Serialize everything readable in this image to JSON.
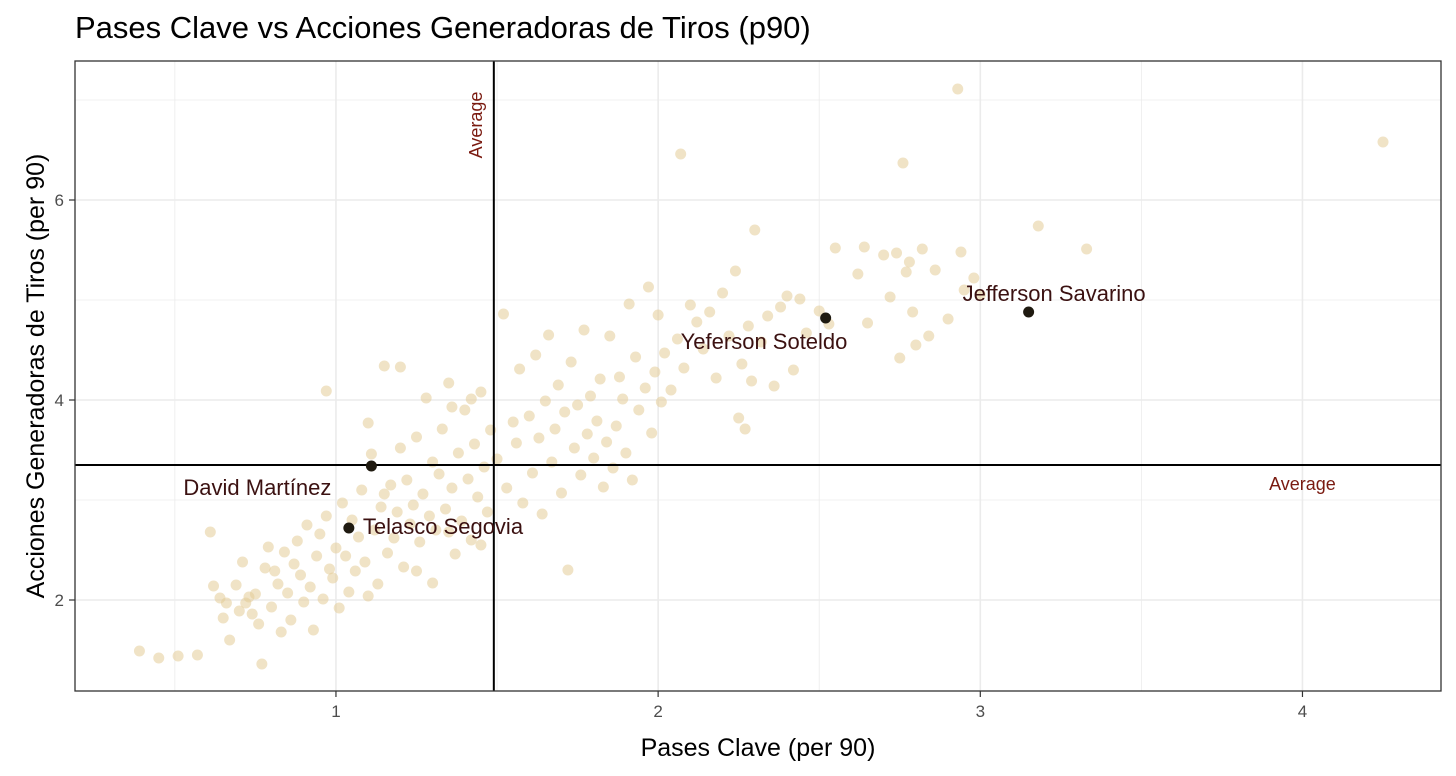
{
  "chart_data": {
    "type": "scatter",
    "title": "Pases Clave vs Acciones Generadoras de Tiros (p90)",
    "xlabel": "Pases Clave (per 90)",
    "ylabel": "Acciones Generadoras de Tiros (per 90)",
    "xlim": [
      0.19,
      4.43
    ],
    "ylim": [
      1.09,
      7.39
    ],
    "xticks": [
      1,
      2,
      3,
      4
    ],
    "yticks": [
      2,
      4,
      6
    ],
    "grid": true,
    "reference_lines": [
      {
        "axis": "x",
        "value": 1.49,
        "label": "Average"
      },
      {
        "axis": "y",
        "value": 3.35,
        "label": "Average"
      }
    ],
    "colors": {
      "background_point": "#e3cc98",
      "highlight_point": "#1f1a10",
      "label": "#3b1111",
      "average_label": "#7a1a10",
      "grid": "#ebebeb"
    },
    "highlighted": [
      {
        "name": "Jefferson Savarino",
        "x": 3.15,
        "y": 4.88
      },
      {
        "name": "Yeferson Soteldo",
        "x": 2.52,
        "y": 4.82
      },
      {
        "name": "David Martínez",
        "x": 1.11,
        "y": 3.34
      },
      {
        "name": "Telasco Segovia",
        "x": 1.04,
        "y": 2.72
      }
    ],
    "points": [
      [
        0.39,
        1.49
      ],
      [
        0.45,
        1.42
      ],
      [
        0.51,
        1.44
      ],
      [
        0.57,
        1.45
      ],
      [
        0.61,
        2.68
      ],
      [
        0.62,
        2.14
      ],
      [
        0.64,
        2.02
      ],
      [
        0.65,
        1.82
      ],
      [
        0.66,
        1.97
      ],
      [
        0.67,
        1.6
      ],
      [
        0.69,
        2.15
      ],
      [
        0.7,
        1.89
      ],
      [
        0.71,
        2.38
      ],
      [
        0.72,
        1.97
      ],
      [
        0.73,
        2.03
      ],
      [
        0.74,
        1.86
      ],
      [
        0.75,
        2.06
      ],
      [
        0.76,
        1.76
      ],
      [
        0.77,
        1.36
      ],
      [
        0.78,
        2.32
      ],
      [
        0.79,
        2.53
      ],
      [
        0.8,
        1.93
      ],
      [
        0.81,
        2.29
      ],
      [
        0.82,
        2.16
      ],
      [
        0.83,
        1.68
      ],
      [
        0.84,
        2.48
      ],
      [
        0.85,
        2.07
      ],
      [
        0.86,
        1.8
      ],
      [
        0.87,
        2.36
      ],
      [
        0.88,
        2.59
      ],
      [
        0.89,
        2.25
      ],
      [
        0.9,
        1.98
      ],
      [
        0.91,
        2.75
      ],
      [
        0.92,
        2.13
      ],
      [
        0.93,
        1.7
      ],
      [
        0.94,
        2.44
      ],
      [
        0.95,
        2.66
      ],
      [
        0.96,
        2.01
      ],
      [
        0.97,
        2.84
      ],
      [
        0.98,
        2.31
      ],
      [
        0.99,
        2.22
      ],
      [
        1.0,
        2.52
      ],
      [
        1.01,
        1.92
      ],
      [
        1.02,
        2.97
      ],
      [
        1.03,
        2.44
      ],
      [
        1.04,
        2.08
      ],
      [
        1.05,
        2.8
      ],
      [
        1.06,
        2.29
      ],
      [
        1.07,
        2.63
      ],
      [
        1.08,
        3.1
      ],
      [
        1.09,
        2.38
      ],
      [
        1.1,
        2.04
      ],
      [
        1.11,
        3.46
      ],
      [
        1.12,
        2.7
      ],
      [
        1.13,
        2.16
      ],
      [
        1.14,
        2.93
      ],
      [
        1.15,
        4.34
      ],
      [
        1.16,
        2.47
      ],
      [
        1.17,
        3.15
      ],
      [
        1.18,
        2.62
      ],
      [
        1.19,
        2.88
      ],
      [
        1.2,
        3.52
      ],
      [
        1.21,
        2.33
      ],
      [
        1.22,
        3.2
      ],
      [
        1.23,
        2.76
      ],
      [
        1.24,
        2.95
      ],
      [
        1.25,
        3.63
      ],
      [
        1.26,
        2.58
      ],
      [
        1.27,
        3.06
      ],
      [
        1.28,
        4.02
      ],
      [
        1.29,
        2.84
      ],
      [
        1.3,
        3.38
      ],
      [
        1.31,
        2.7
      ],
      [
        1.32,
        3.26
      ],
      [
        1.33,
        3.71
      ],
      [
        1.34,
        2.91
      ],
      [
        1.35,
        4.17
      ],
      [
        1.36,
        3.12
      ],
      [
        1.37,
        2.46
      ],
      [
        1.38,
        3.47
      ],
      [
        1.39,
        2.79
      ],
      [
        1.4,
        3.9
      ],
      [
        1.41,
        3.21
      ],
      [
        1.42,
        2.6
      ],
      [
        1.43,
        3.56
      ],
      [
        1.44,
        3.03
      ],
      [
        1.45,
        4.08
      ],
      [
        1.46,
        3.33
      ],
      [
        1.47,
        2.88
      ],
      [
        1.48,
        3.7
      ],
      [
        0.97,
        4.09
      ],
      [
        1.1,
        3.77
      ],
      [
        1.2,
        4.33
      ],
      [
        1.3,
        2.17
      ],
      [
        1.36,
        3.93
      ],
      [
        1.42,
        4.01
      ],
      [
        1.45,
        2.55
      ],
      [
        1.15,
        3.06
      ],
      [
        1.25,
        2.29
      ],
      [
        1.35,
        2.68
      ],
      [
        1.5,
        3.41
      ],
      [
        1.52,
        4.86
      ],
      [
        1.53,
        3.12
      ],
      [
        1.55,
        3.78
      ],
      [
        1.56,
        3.57
      ],
      [
        1.57,
        4.31
      ],
      [
        1.58,
        2.97
      ],
      [
        1.6,
        3.84
      ],
      [
        1.61,
        3.27
      ],
      [
        1.62,
        4.45
      ],
      [
        1.63,
        3.62
      ],
      [
        1.64,
        2.86
      ],
      [
        1.65,
        3.99
      ],
      [
        1.66,
        4.65
      ],
      [
        1.67,
        3.38
      ],
      [
        1.68,
        3.71
      ],
      [
        1.69,
        4.15
      ],
      [
        1.7,
        3.07
      ],
      [
        1.71,
        3.88
      ],
      [
        1.72,
        2.3
      ],
      [
        1.73,
        4.38
      ],
      [
        1.74,
        3.52
      ],
      [
        1.75,
        3.95
      ],
      [
        1.76,
        3.25
      ],
      [
        1.77,
        4.7
      ],
      [
        1.78,
        3.66
      ],
      [
        1.79,
        4.04
      ],
      [
        1.8,
        3.42
      ],
      [
        1.81,
        3.79
      ],
      [
        1.82,
        4.21
      ],
      [
        1.83,
        3.13
      ],
      [
        1.84,
        3.58
      ],
      [
        1.85,
        4.64
      ],
      [
        1.86,
        3.32
      ],
      [
        1.87,
        3.74
      ],
      [
        1.88,
        4.23
      ],
      [
        1.89,
        4.01
      ],
      [
        1.9,
        3.47
      ],
      [
        1.91,
        4.96
      ],
      [
        1.92,
        3.2
      ],
      [
        1.93,
        4.43
      ],
      [
        1.94,
        3.9
      ],
      [
        1.96,
        4.12
      ],
      [
        1.97,
        5.13
      ],
      [
        1.98,
        3.67
      ],
      [
        1.99,
        4.28
      ],
      [
        2.0,
        4.85
      ],
      [
        2.01,
        3.98
      ],
      [
        2.02,
        4.47
      ],
      [
        2.04,
        4.1
      ],
      [
        2.06,
        4.61
      ],
      [
        2.07,
        6.46
      ],
      [
        2.08,
        4.32
      ],
      [
        2.1,
        4.95
      ],
      [
        2.12,
        4.78
      ],
      [
        2.14,
        4.51
      ],
      [
        2.16,
        4.88
      ],
      [
        2.18,
        4.22
      ],
      [
        2.2,
        5.07
      ],
      [
        2.22,
        4.64
      ],
      [
        2.24,
        5.29
      ],
      [
        2.25,
        3.82
      ],
      [
        2.26,
        4.36
      ],
      [
        2.27,
        3.71
      ],
      [
        2.28,
        4.74
      ],
      [
        2.29,
        4.19
      ],
      [
        2.3,
        5.7
      ],
      [
        2.32,
        4.58
      ],
      [
        2.34,
        4.84
      ],
      [
        2.36,
        4.14
      ],
      [
        2.38,
        4.93
      ],
      [
        2.4,
        5.04
      ],
      [
        2.42,
        4.3
      ],
      [
        2.44,
        5.01
      ],
      [
        2.46,
        4.67
      ],
      [
        2.5,
        4.89
      ],
      [
        2.53,
        4.76
      ],
      [
        2.55,
        5.52
      ],
      [
        2.62,
        5.26
      ],
      [
        2.64,
        5.53
      ],
      [
        2.65,
        4.77
      ],
      [
        2.7,
        5.45
      ],
      [
        2.72,
        5.03
      ],
      [
        2.74,
        5.47
      ],
      [
        2.75,
        4.42
      ],
      [
        2.76,
        6.37
      ],
      [
        2.77,
        5.28
      ],
      [
        2.78,
        5.38
      ],
      [
        2.79,
        4.88
      ],
      [
        2.8,
        4.55
      ],
      [
        2.82,
        5.51
      ],
      [
        2.84,
        4.64
      ],
      [
        2.86,
        5.3
      ],
      [
        2.9,
        4.81
      ],
      [
        2.93,
        7.11
      ],
      [
        2.94,
        5.48
      ],
      [
        2.95,
        5.1
      ],
      [
        2.98,
        5.22
      ],
      [
        3.0,
        5.05
      ],
      [
        3.18,
        5.74
      ],
      [
        3.33,
        5.51
      ],
      [
        4.25,
        6.58
      ]
    ]
  }
}
